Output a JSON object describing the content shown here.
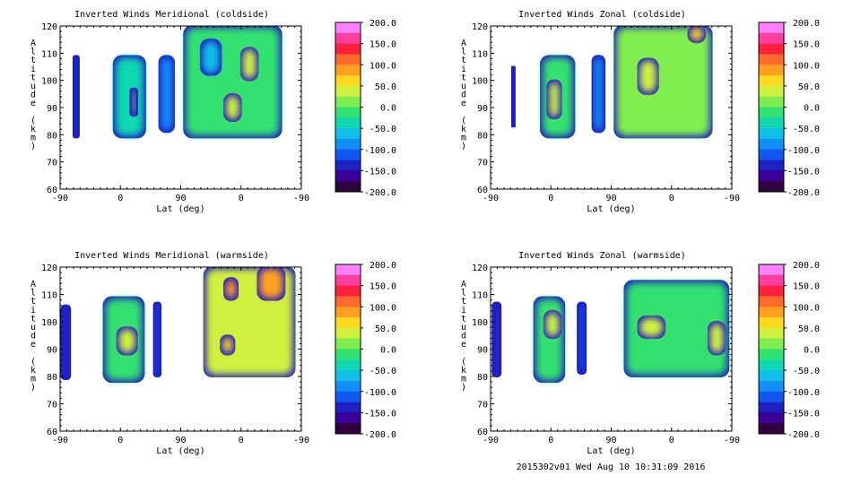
{
  "panels": [
    {
      "title": "Inverted Winds Meridional (coldside)",
      "ylabel": "Altitude (km)",
      "xlabel": "Lat (deg)",
      "xticks": [
        "-90",
        "0",
        "90",
        "0",
        "-90"
      ],
      "yticks": [
        "60",
        "70",
        "80",
        "90",
        "100",
        "110",
        "120"
      ]
    },
    {
      "title": "Inverted Winds Zonal (coldside)",
      "ylabel": "Altitude (km)",
      "xlabel": "Lat (deg)",
      "xticks": [
        "-90",
        "0",
        "90",
        "0",
        "-90"
      ],
      "yticks": [
        "60",
        "70",
        "80",
        "90",
        "100",
        "110",
        "120"
      ]
    },
    {
      "title": "Inverted Winds Meridional (warmside)",
      "ylabel": "Altitude (km)",
      "xlabel": "Lat (deg)",
      "xticks": [
        "-90",
        "0",
        "90",
        "0",
        "-90"
      ],
      "yticks": [
        "60",
        "70",
        "80",
        "90",
        "100",
        "110",
        "120"
      ]
    },
    {
      "title": "Inverted Winds Zonal (warmside)",
      "ylabel": "Altitude (km)",
      "xlabel": "Lat (deg)",
      "xticks": [
        "-90",
        "0",
        "90",
        "0",
        "-90"
      ],
      "yticks": [
        "60",
        "70",
        "80",
        "90",
        "100",
        "110",
        "120"
      ]
    }
  ],
  "colorbar": {
    "labels": [
      "200.0",
      "150.0",
      "100.0",
      "50.0",
      "0.0",
      "-50.0",
      "-100.0",
      "-150.0",
      "-200.0"
    ],
    "colors": [
      "#ff80ff",
      "#ff3ca0",
      "#ff2040",
      "#ff6a2a",
      "#ffa020",
      "#ffd820",
      "#d0f040",
      "#80ee50",
      "#30e070",
      "#10d8b0",
      "#10c0e8",
      "#1090f8",
      "#1058f0",
      "#2020c0",
      "#3a0098",
      "#300040"
    ]
  },
  "footer": "2015302v01 Wed Aug 10 10:31:09 2016",
  "chart_data": [
    {
      "type": "heatmap",
      "title": "Inverted Winds Meridional (coldside)",
      "xlabel": "Lat (deg)",
      "ylabel": "Altitude (km)",
      "ylim": [
        60,
        120
      ],
      "x_tick_labels": [
        "-90",
        "0",
        "90",
        "0",
        "-90"
      ],
      "color_range": [
        -200,
        200
      ],
      "color_step": 25,
      "grid": false,
      "blobs": [
        {
          "x0": -70,
          "x1": -62,
          "y0": 79,
          "y1": 109,
          "value": -110
        },
        {
          "x0": -10,
          "x1": 37,
          "y0": 79,
          "y1": 109,
          "value": -40
        },
        {
          "x0": 15,
          "x1": 25,
          "y0": 87,
          "y1": 97,
          "value": 5
        },
        {
          "x0": 58,
          "x1": 80,
          "y0": 81,
          "y1": 109,
          "value": -90
        },
        {
          "x0": 95,
          "x1": 240,
          "y0": 79,
          "y1": 120,
          "value": 0
        },
        {
          "x0": 155,
          "x1": 180,
          "y0": 85,
          "y1": 95,
          "value": 40
        },
        {
          "x0": 180,
          "x1": 205,
          "y0": 100,
          "y1": 112,
          "value": 35
        },
        {
          "x0": 120,
          "x1": 150,
          "y0": 102,
          "y1": 115,
          "value": -70
        }
      ]
    },
    {
      "type": "heatmap",
      "title": "Inverted Winds Zonal (coldside)",
      "xlabel": "Lat (deg)",
      "ylabel": "Altitude (km)",
      "ylim": [
        60,
        120
      ],
      "x_tick_labels": [
        "-90",
        "0",
        "90",
        "0",
        "-90"
      ],
      "color_range": [
        -200,
        200
      ],
      "color_step": 25,
      "grid": false,
      "blobs": [
        {
          "x0": -58,
          "x1": -54,
          "y0": 83,
          "y1": 105,
          "value": -140
        },
        {
          "x0": -15,
          "x1": 35,
          "y0": 79,
          "y1": 109,
          "value": -20
        },
        {
          "x0": -5,
          "x1": 15,
          "y0": 86,
          "y1": 100,
          "value": 40
        },
        {
          "x0": 62,
          "x1": 80,
          "y0": 81,
          "y1": 109,
          "value": -90
        },
        {
          "x0": 95,
          "x1": 240,
          "y0": 79,
          "y1": 120,
          "value": 10
        },
        {
          "x0": 205,
          "x1": 230,
          "y0": 114,
          "y1": 120,
          "value": 70
        },
        {
          "x0": 130,
          "x1": 160,
          "y0": 95,
          "y1": 108,
          "value": 30
        }
      ]
    },
    {
      "type": "heatmap",
      "title": "Inverted Winds Meridional (warmside)",
      "xlabel": "Lat (deg)",
      "ylabel": "Altitude (km)",
      "ylim": [
        60,
        120
      ],
      "x_tick_labels": [
        "-90",
        "0",
        "90",
        "0",
        "-90"
      ],
      "color_range": [
        -200,
        200
      ],
      "color_step": 25,
      "grid": false,
      "blobs": [
        {
          "x0": -88,
          "x1": -75,
          "y0": 79,
          "y1": 106,
          "value": -130
        },
        {
          "x0": -25,
          "x1": 35,
          "y0": 78,
          "y1": 109,
          "value": -20
        },
        {
          "x0": -5,
          "x1": 25,
          "y0": 88,
          "y1": 98,
          "value": 50
        },
        {
          "x0": 50,
          "x1": 60,
          "y0": 80,
          "y1": 107,
          "value": -110
        },
        {
          "x0": 125,
          "x1": 260,
          "y0": 80,
          "y1": 120,
          "value": 30
        },
        {
          "x0": 155,
          "x1": 175,
          "y0": 108,
          "y1": 116,
          "value": 90
        },
        {
          "x0": 205,
          "x1": 245,
          "y0": 108,
          "y1": 120,
          "value": 100
        },
        {
          "x0": 150,
          "x1": 170,
          "y0": 88,
          "y1": 95,
          "value": 60
        }
      ]
    },
    {
      "type": "heatmap",
      "title": "Inverted Winds Zonal (warmside)",
      "xlabel": "Lat (deg)",
      "ylabel": "Altitude (km)",
      "ylim": [
        60,
        120
      ],
      "x_tick_labels": [
        "-90",
        "0",
        "90",
        "0",
        "-90"
      ],
      "color_range": [
        -200,
        200
      ],
      "color_step": 25,
      "grid": false,
      "blobs": [
        {
          "x0": -87,
          "x1": -75,
          "y0": 80,
          "y1": 107,
          "value": -130
        },
        {
          "x0": -25,
          "x1": 20,
          "y0": 78,
          "y1": 109,
          "value": -10
        },
        {
          "x0": -10,
          "x1": 15,
          "y0": 94,
          "y1": 104,
          "value": 40
        },
        {
          "x0": 40,
          "x1": 52,
          "y0": 81,
          "y1": 107,
          "value": -100
        },
        {
          "x0": 110,
          "x1": 265,
          "y0": 80,
          "y1": 115,
          "value": -20
        },
        {
          "x0": 130,
          "x1": 170,
          "y0": 94,
          "y1": 102,
          "value": 40
        },
        {
          "x0": 235,
          "x1": 260,
          "y0": 88,
          "y1": 100,
          "value": 50
        }
      ]
    }
  ]
}
